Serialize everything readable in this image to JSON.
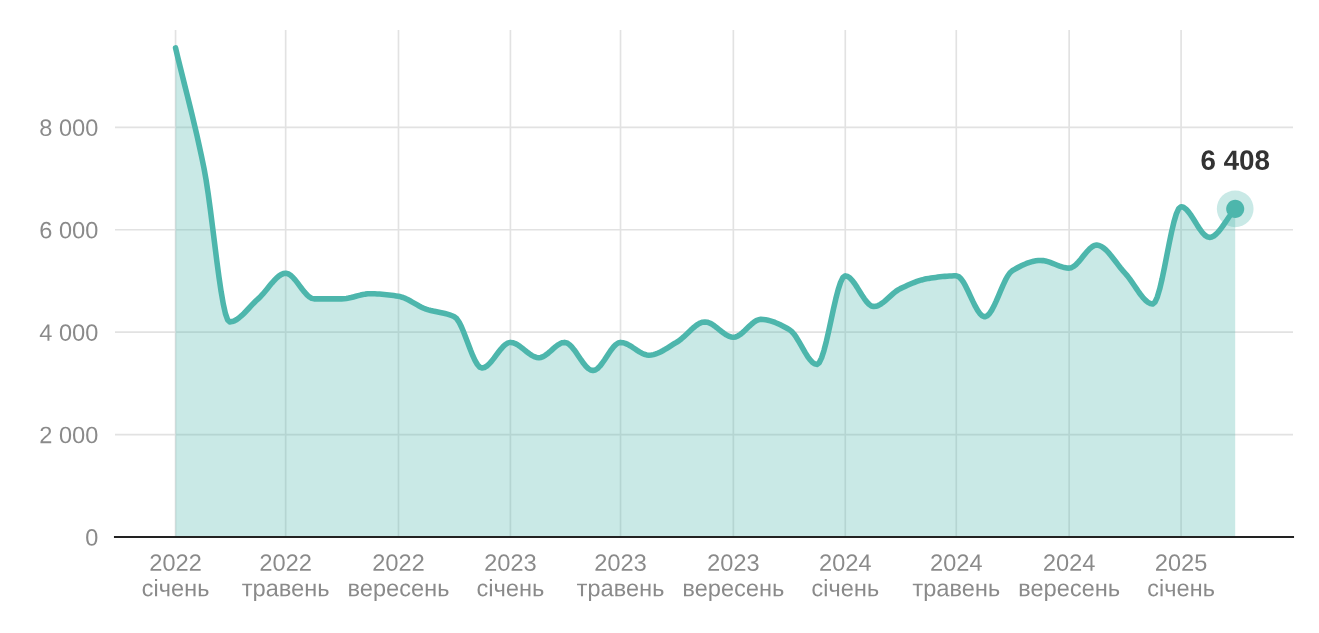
{
  "chart_data": {
    "type": "area",
    "x": [
      "2022-01",
      "2022-02",
      "2022-03",
      "2022-04",
      "2022-05",
      "2022-06",
      "2022-07",
      "2022-08",
      "2022-09",
      "2022-10",
      "2022-11",
      "2022-12",
      "2023-01",
      "2023-02",
      "2023-03",
      "2023-04",
      "2023-05",
      "2023-06",
      "2023-07",
      "2023-08",
      "2023-09",
      "2023-10",
      "2023-11",
      "2023-12",
      "2024-01",
      "2024-02",
      "2024-03",
      "2024-04",
      "2024-05",
      "2024-06",
      "2024-07",
      "2024-08",
      "2024-09",
      "2024-10",
      "2024-11",
      "2024-12",
      "2025-01",
      "2025-02",
      "2025-03"
    ],
    "series": [
      {
        "color": "#4db6ac",
        "values": [
          9550,
          7200,
          4200,
          4650,
          5150,
          4650,
          4650,
          4750,
          4700,
          4450,
          4300,
          3300,
          3800,
          3500,
          3800,
          3250,
          3800,
          3550,
          3800,
          4200,
          3900,
          4250,
          4050,
          3370,
          5100,
          4500,
          4850,
          5050,
          5100,
          4300,
          5200,
          5400,
          5250,
          5700,
          5150,
          4550,
          6450,
          5850,
          6408
        ]
      }
    ],
    "xlim": [
      "2021-10-27",
      "2025-05-03"
    ],
    "xticks": [
      {
        "value": "2022-01",
        "label": "2022\nсічень"
      },
      {
        "value": "2022-05",
        "label": "2022\nтравень"
      },
      {
        "value": "2022-09",
        "label": "2022\nвересень"
      },
      {
        "value": "2023-01",
        "label": "2023\nсічень"
      },
      {
        "value": "2023-05",
        "label": "2023\nтравень"
      },
      {
        "value": "2023-09",
        "label": "2023\nвересень"
      },
      {
        "value": "2024-01",
        "label": "2024\nсічень"
      },
      {
        "value": "2024-05",
        "label": "2024\nтравень"
      },
      {
        "value": "2024-09",
        "label": "2024\nвересень"
      },
      {
        "value": "2025-01",
        "label": "2025\nсічень"
      }
    ],
    "ylim": [
      0,
      9900
    ],
    "yticks": [
      0,
      {
        "value": 2000,
        "label": "2 000"
      },
      {
        "value": 4000,
        "label": "4 000"
      },
      {
        "value": 6000,
        "label": "6 000"
      },
      {
        "value": 8000,
        "label": "8 000"
      }
    ],
    "grid": true,
    "annotations": [
      {
        "text": "6 408",
        "x": "2025-03",
        "y": 6408
      }
    ]
  }
}
